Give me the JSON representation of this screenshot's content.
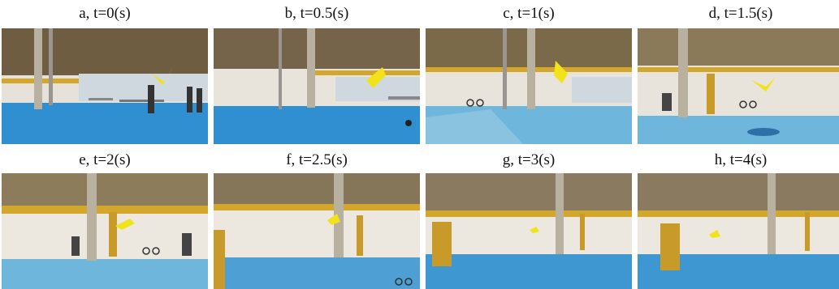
{
  "panels": [
    {
      "caption": "a, t=0(s)"
    },
    {
      "caption": "b, t=0.5(s)"
    },
    {
      "caption": "c, t=1(s)"
    },
    {
      "caption": "d, t=1.5(s)"
    },
    {
      "caption": "e, t=2(s)"
    },
    {
      "caption": "f, t=2.5(s)"
    },
    {
      "caption": "g, t=3(s)"
    },
    {
      "caption": "h, t=4(s)"
    }
  ],
  "colors": {
    "floor": "#2f8fd0",
    "floor_light": "#6fb6dc",
    "wall": "#e8e4dc",
    "ceiling": "#7a6a4a",
    "railing": "#d4a82a",
    "wing": "#f2e21a",
    "door": "#c89a2a"
  }
}
